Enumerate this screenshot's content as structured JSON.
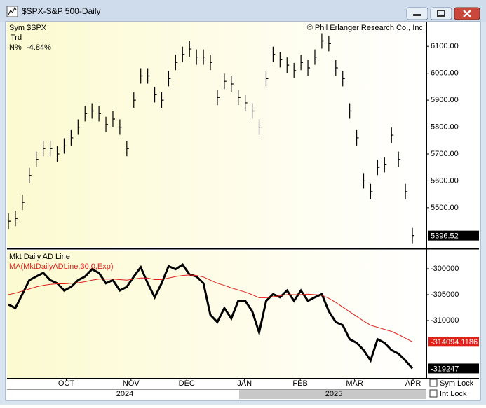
{
  "window": {
    "title": "$SPX-S&P 500-Daily",
    "sym_lock": "Sym Lock",
    "int_lock": "Int Lock"
  },
  "chart_data": [
    {
      "type": "hlc_bar",
      "copyright": "© Phil Erlanger Research Co., Inc.",
      "info": {
        "sym_label": "Sym",
        "sym": "$SPX",
        "trd": "Trd",
        "n_label": "N%",
        "n_value": "-4.84%"
      },
      "series": [
        {
          "name": "$SPX",
          "color": "#000000",
          "values": [
            5450,
            5460,
            5520,
            5620,
            5680,
            5720,
            5720,
            5700,
            5730,
            5760,
            5800,
            5850,
            5860,
            5850,
            5810,
            5830,
            5800,
            5720,
            5900,
            5990,
            5990,
            5920,
            5900,
            5980,
            6040,
            6070,
            6090,
            6060,
            6060,
            6040,
            5910,
            5970,
            5960,
            5910,
            5890,
            5860,
            5800,
            5980,
            6070,
            6050,
            6030,
            6010,
            6040,
            6020,
            6060,
            6120,
            6110,
            6020,
            5980,
            5860,
            5760,
            5600,
            5560,
            5650,
            5660,
            5770,
            5680,
            5560,
            5396.52
          ]
        }
      ],
      "ylim": [
        5354,
        6189
      ],
      "yticks": [
        {
          "value": 5500,
          "label": "5500.00"
        },
        {
          "value": 5600,
          "label": "5600.00"
        },
        {
          "value": 5700,
          "label": "5700.00"
        },
        {
          "value": 5800,
          "label": "5800.00"
        },
        {
          "value": 5900,
          "label": "5900.00"
        },
        {
          "value": 6000,
          "label": "6000.00"
        },
        {
          "value": 6100,
          "label": "6100.00"
        }
      ],
      "grid": false
    },
    {
      "type": "line",
      "series": [
        {
          "name": "Mkt Daily AD Line",
          "color": "#000000",
          "values": [
            -306900,
            -307600,
            -304900,
            -302200,
            -301500,
            -300800,
            -302200,
            -302800,
            -304200,
            -303500,
            -302200,
            -301500,
            -300100,
            -300800,
            -302800,
            -302200,
            -304200,
            -303500,
            -301500,
            -299700,
            -302800,
            -305500,
            -302800,
            -299500,
            -300100,
            -299200,
            -301100,
            -301500,
            -302800,
            -308900,
            -310300,
            -307600,
            -309600,
            -306200,
            -306200,
            -308200,
            -312300,
            -306200,
            -304900,
            -305500,
            -304200,
            -306200,
            -304200,
            -306200,
            -305500,
            -304900,
            -308200,
            -310300,
            -310900,
            -313600,
            -314300,
            -315700,
            -317700,
            -313600,
            -314300,
            -315700,
            -316400,
            -317700,
            -319247
          ]
        },
        {
          "name": "MA(MktDailyADLine,30,0,Exp)",
          "color": "#e0201b",
          "values": [
            -305000,
            -304700,
            -304300,
            -303900,
            -303500,
            -303200,
            -303000,
            -302900,
            -302900,
            -302800,
            -302700,
            -302500,
            -302200,
            -302000,
            -302000,
            -302000,
            -302100,
            -302200,
            -302000,
            -301800,
            -301800,
            -302100,
            -302100,
            -301800,
            -301500,
            -301300,
            -301200,
            -301300,
            -301600,
            -302200,
            -302800,
            -303200,
            -303700,
            -304100,
            -304500,
            -305000,
            -305600,
            -305600,
            -305400,
            -305200,
            -305000,
            -305000,
            -305000,
            -304900,
            -305000,
            -305100,
            -305700,
            -306500,
            -307400,
            -308300,
            -309200,
            -310100,
            -310900,
            -311300,
            -311700,
            -312100,
            -312700,
            -313400,
            -314094.1186
          ]
        }
      ],
      "ylim": [
        -321081,
        -296486
      ],
      "yticks": [
        -300000,
        -305000,
        -310000
      ],
      "xlim": [
        0,
        58.4
      ],
      "xticks": [
        {
          "value": 8.3,
          "label": "OCT"
        },
        {
          "value": 17.6,
          "label": "NOV"
        },
        {
          "value": 25.6,
          "label": "DEC"
        },
        {
          "value": 33.9,
          "label": "JAN"
        },
        {
          "value": 41.9,
          "label": "FEB"
        },
        {
          "value": 49.7,
          "label": "MAR"
        },
        {
          "value": 58.1,
          "label": "APR"
        }
      ],
      "years": [
        "2024",
        "2025"
      ]
    }
  ]
}
